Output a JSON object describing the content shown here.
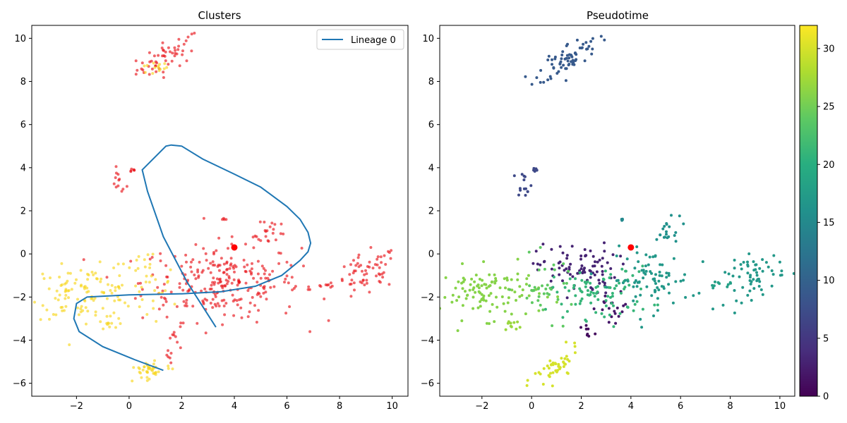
{
  "chart_data": [
    {
      "type": "scatter",
      "title": "Clusters",
      "xlabel": "",
      "ylabel": "",
      "xlim": [
        -3.7,
        10.6
      ],
      "ylim": [
        -6.6,
        10.6
      ],
      "xticks": [
        -2,
        0,
        2,
        4,
        6,
        8,
        10
      ],
      "yticks": [
        -6,
        -4,
        -2,
        0,
        2,
        4,
        6,
        8,
        10
      ],
      "grid": false,
      "legend_placement": "top-right",
      "legend": [
        "Lineage 0"
      ],
      "colors": {
        "cluster_a": "#e8141a",
        "cluster_b": "#f7d51c",
        "line": "#1f77b4",
        "root": "#ff0000"
      },
      "lineage_line": {
        "name": "Lineage 0",
        "x": [
          1.3,
          0.2,
          -1.0,
          -1.9,
          -2.1,
          -2.0,
          -1.6,
          0.0,
          2.0,
          3.5,
          4.8,
          5.8,
          6.5,
          6.8,
          6.9,
          6.8,
          6.5,
          6.0,
          5.0,
          4.0,
          2.8,
          2.0,
          1.6,
          1.4,
          0.5,
          0.7,
          1.3,
          2.2,
          3.3
        ],
        "y": [
          -5.4,
          -4.9,
          -4.3,
          -3.6,
          -3.0,
          -2.3,
          -2.0,
          -1.9,
          -1.85,
          -1.75,
          -1.5,
          -1.0,
          -0.3,
          0.1,
          0.5,
          1.0,
          1.6,
          2.2,
          3.1,
          3.7,
          4.4,
          5.0,
          5.05,
          5.0,
          3.9,
          2.9,
          0.8,
          -1.3,
          -3.4
        ]
      },
      "root_point": {
        "x": 4.0,
        "y": 0.3
      },
      "point_groups": [
        {
          "color": "cluster_a",
          "cx": 1.5,
          "cy": 9.2,
          "sx": 0.6,
          "sy": 0.35,
          "n": 55,
          "tilt": 0.55
        },
        {
          "color": "cluster_b",
          "cx": 0.9,
          "cy": 8.6,
          "sx": 0.3,
          "sy": 0.15,
          "n": 14,
          "tilt": 0.0
        },
        {
          "color": "cluster_a",
          "cx": -0.4,
          "cy": 3.3,
          "sx": 0.15,
          "sy": 0.3,
          "n": 12,
          "tilt": 0.0
        },
        {
          "color": "cluster_a",
          "cx": 0.1,
          "cy": 3.9,
          "sx": 0.08,
          "sy": 0.06,
          "n": 6,
          "tilt": 0.0
        },
        {
          "color": "cluster_a",
          "cx": 3.6,
          "cy": 1.55,
          "sx": 0.06,
          "sy": 0.06,
          "n": 4,
          "tilt": 0.0
        },
        {
          "color": "cluster_a",
          "cx": 5.4,
          "cy": 1.0,
          "sx": 0.35,
          "sy": 0.3,
          "n": 20,
          "tilt": 0.4
        },
        {
          "color": "cluster_a",
          "cx": 3.5,
          "cy": -1.3,
          "sx": 1.5,
          "sy": 0.9,
          "n": 260,
          "tilt": 0.0
        },
        {
          "color": "cluster_a",
          "cx": 1.8,
          "cy": -3.8,
          "sx": 0.2,
          "sy": 0.2,
          "n": 6,
          "tilt": 0.0
        },
        {
          "color": "cluster_a",
          "cx": 1.5,
          "cy": -4.8,
          "sx": 0.1,
          "sy": 0.15,
          "n": 6,
          "tilt": 0.0
        },
        {
          "color": "cluster_a",
          "cx": 9.0,
          "cy": -1.0,
          "sx": 0.6,
          "sy": 0.5,
          "n": 60,
          "tilt": 0.4
        },
        {
          "color": "cluster_a",
          "cx": 7.6,
          "cy": -1.45,
          "sx": 0.35,
          "sy": 0.08,
          "n": 10,
          "tilt": 0.0
        },
        {
          "color": "cluster_b",
          "cx": -1.7,
          "cy": -1.8,
          "sx": 1.0,
          "sy": 0.6,
          "n": 110,
          "tilt": 0.0
        },
        {
          "color": "cluster_b",
          "cx": -0.8,
          "cy": -3.3,
          "sx": 0.2,
          "sy": 0.15,
          "n": 10,
          "tilt": 0.0
        },
        {
          "color": "cluster_b",
          "cx": 0.6,
          "cy": -1.5,
          "sx": 0.6,
          "sy": 0.9,
          "n": 35,
          "tilt": 0.0
        },
        {
          "color": "cluster_b",
          "cx": 0.8,
          "cy": -5.4,
          "sx": 0.4,
          "sy": 0.3,
          "n": 40,
          "tilt": 0.3
        }
      ]
    },
    {
      "type": "scatter",
      "title": "Pseudotime",
      "xlabel": "",
      "ylabel": "",
      "xlim": [
        -3.7,
        10.6
      ],
      "ylim": [
        -6.6,
        10.6
      ],
      "xticks": [
        -2,
        0,
        2,
        4,
        6,
        8,
        10
      ],
      "yticks": [
        -6,
        -4,
        -2,
        0,
        2,
        4,
        6,
        8,
        10
      ],
      "grid": false,
      "colorbar": {
        "min": 0,
        "max": 32,
        "ticks": [
          0,
          5,
          10,
          15,
          20,
          25,
          30
        ],
        "colormap": "viridis"
      },
      "colors": {
        "root": "#ff0000"
      },
      "root_point": {
        "x": 4.0,
        "y": 0.3
      },
      "point_groups": [
        {
          "value": 9,
          "cx": 1.5,
          "cy": 9.1,
          "sx": 0.6,
          "sy": 0.35,
          "n": 70,
          "tilt": 0.55
        },
        {
          "value": 7,
          "cx": -0.3,
          "cy": 3.3,
          "sx": 0.15,
          "sy": 0.3,
          "n": 14,
          "tilt": 0.0
        },
        {
          "value": 7,
          "cx": 0.1,
          "cy": 3.9,
          "sx": 0.08,
          "sy": 0.06,
          "n": 6,
          "tilt": 0.0
        },
        {
          "value": 15,
          "cx": 3.6,
          "cy": 1.55,
          "sx": 0.06,
          "sy": 0.06,
          "n": 4,
          "tilt": 0.0
        },
        {
          "value": 16,
          "cx": 5.4,
          "cy": 1.0,
          "sx": 0.35,
          "sy": 0.3,
          "n": 20,
          "tilt": 0.4
        },
        {
          "value": 3,
          "cx": 1.8,
          "cy": -0.7,
          "sx": 0.8,
          "sy": 0.6,
          "n": 90,
          "tilt": 0.0
        },
        {
          "value": 2,
          "cx": 3.3,
          "cy": -2.6,
          "sx": 0.35,
          "sy": 0.4,
          "n": 20,
          "tilt": 0.0
        },
        {
          "value": 1,
          "cx": 2.3,
          "cy": -3.7,
          "sx": 0.15,
          "sy": 0.2,
          "n": 8,
          "tilt": 0.0
        },
        {
          "value": 21,
          "cx": 2.8,
          "cy": -1.8,
          "sx": 1.0,
          "sy": 0.6,
          "n": 90,
          "tilt": 0.0
        },
        {
          "value": 17,
          "cx": 4.8,
          "cy": -1.2,
          "sx": 0.8,
          "sy": 0.7,
          "n": 80,
          "tilt": 0.0
        },
        {
          "value": 17,
          "cx": 9.0,
          "cy": -1.0,
          "sx": 0.6,
          "sy": 0.5,
          "n": 60,
          "tilt": 0.4
        },
        {
          "value": 18,
          "cx": 7.6,
          "cy": -1.45,
          "sx": 0.35,
          "sy": 0.08,
          "n": 10,
          "tilt": 0.0
        },
        {
          "value": 26,
          "cx": -1.7,
          "cy": -1.8,
          "sx": 1.0,
          "sy": 0.6,
          "n": 110,
          "tilt": 0.0
        },
        {
          "value": 27,
          "cx": -0.8,
          "cy": -3.3,
          "sx": 0.2,
          "sy": 0.15,
          "n": 10,
          "tilt": 0.0
        },
        {
          "value": 24,
          "cx": 0.6,
          "cy": -1.6,
          "sx": 0.6,
          "sy": 0.7,
          "n": 35,
          "tilt": 0.0
        },
        {
          "value": 30,
          "cx": 1.0,
          "cy": -5.3,
          "sx": 0.45,
          "sy": 0.35,
          "n": 45,
          "tilt": 0.5
        }
      ]
    }
  ]
}
